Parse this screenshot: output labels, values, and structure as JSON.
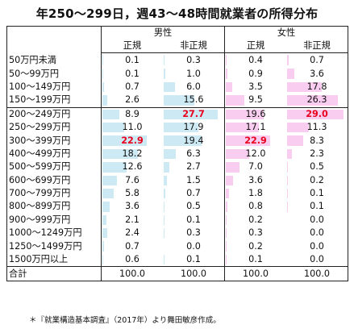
{
  "title": "年250～299日，週43～48時間就業者の所得分布",
  "groups": [
    "男性",
    "女性"
  ],
  "subcols": [
    "正規",
    "非正規",
    "正規",
    "非正規"
  ],
  "colors": {
    "male_bar": "#cde9f4",
    "female_bar": "#f8cdf0",
    "highlight": "#e8001c"
  },
  "rows": [
    {
      "label": "50万円未満",
      "values": [
        "0.1",
        "0.3",
        "0.4",
        "0.7"
      ]
    },
    {
      "label": "50～99万円",
      "values": [
        "0.1",
        "1.0",
        "0.9",
        "3.6"
      ]
    },
    {
      "label": "100～149万円",
      "values": [
        "0.7",
        "6.0",
        "3.5",
        "17.8"
      ]
    },
    {
      "label": "150～199万円",
      "values": [
        "2.6",
        "15.6",
        "9.5",
        "26.3"
      ]
    },
    {
      "label": "200～249万円",
      "values": [
        "8.9",
        "27.7",
        "19.6",
        "29.0"
      ]
    },
    {
      "label": "250～299万円",
      "values": [
        "11.0",
        "17.9",
        "17.1",
        "11.3"
      ]
    },
    {
      "label": "300～399万円",
      "values": [
        "22.9",
        "19.4",
        "22.9",
        "8.3"
      ]
    },
    {
      "label": "400～499万円",
      "values": [
        "18.2",
        "6.3",
        "12.0",
        "2.3"
      ]
    },
    {
      "label": "500～599万円",
      "values": [
        "12.6",
        "2.7",
        "7.0",
        "0.5"
      ]
    },
    {
      "label": "600～699万円",
      "values": [
        "7.6",
        "1.5",
        "3.6",
        "0.2"
      ]
    },
    {
      "label": "700～799万円",
      "values": [
        "5.8",
        "0.7",
        "1.8",
        "0.1"
      ]
    },
    {
      "label": "800～899万円",
      "values": [
        "3.6",
        "0.5",
        "0.8",
        "0.1"
      ]
    },
    {
      "label": "900～999万円",
      "values": [
        "2.1",
        "0.1",
        "0.2",
        "0.0"
      ]
    },
    {
      "label": "1000～1249万円",
      "values": [
        "2.4",
        "0.3",
        "0.3",
        "0.0"
      ]
    },
    {
      "label": "1250～1499万円",
      "values": [
        "0.7",
        "0.0",
        "0.2",
        "0.0"
      ]
    },
    {
      "label": "1500万円以上",
      "values": [
        "0.6",
        "0.1",
        "0.1",
        "0.0"
      ]
    }
  ],
  "highlights": [
    [
      4,
      1
    ],
    [
      4,
      3
    ],
    [
      6,
      0
    ],
    [
      6,
      2
    ]
  ],
  "total": {
    "label": "合計",
    "values": [
      "100.0",
      "100.0",
      "100.0",
      "100.0"
    ]
  },
  "note": "＊『就業構造基本調査』（2017年）より舞田敏彦作成。"
}
